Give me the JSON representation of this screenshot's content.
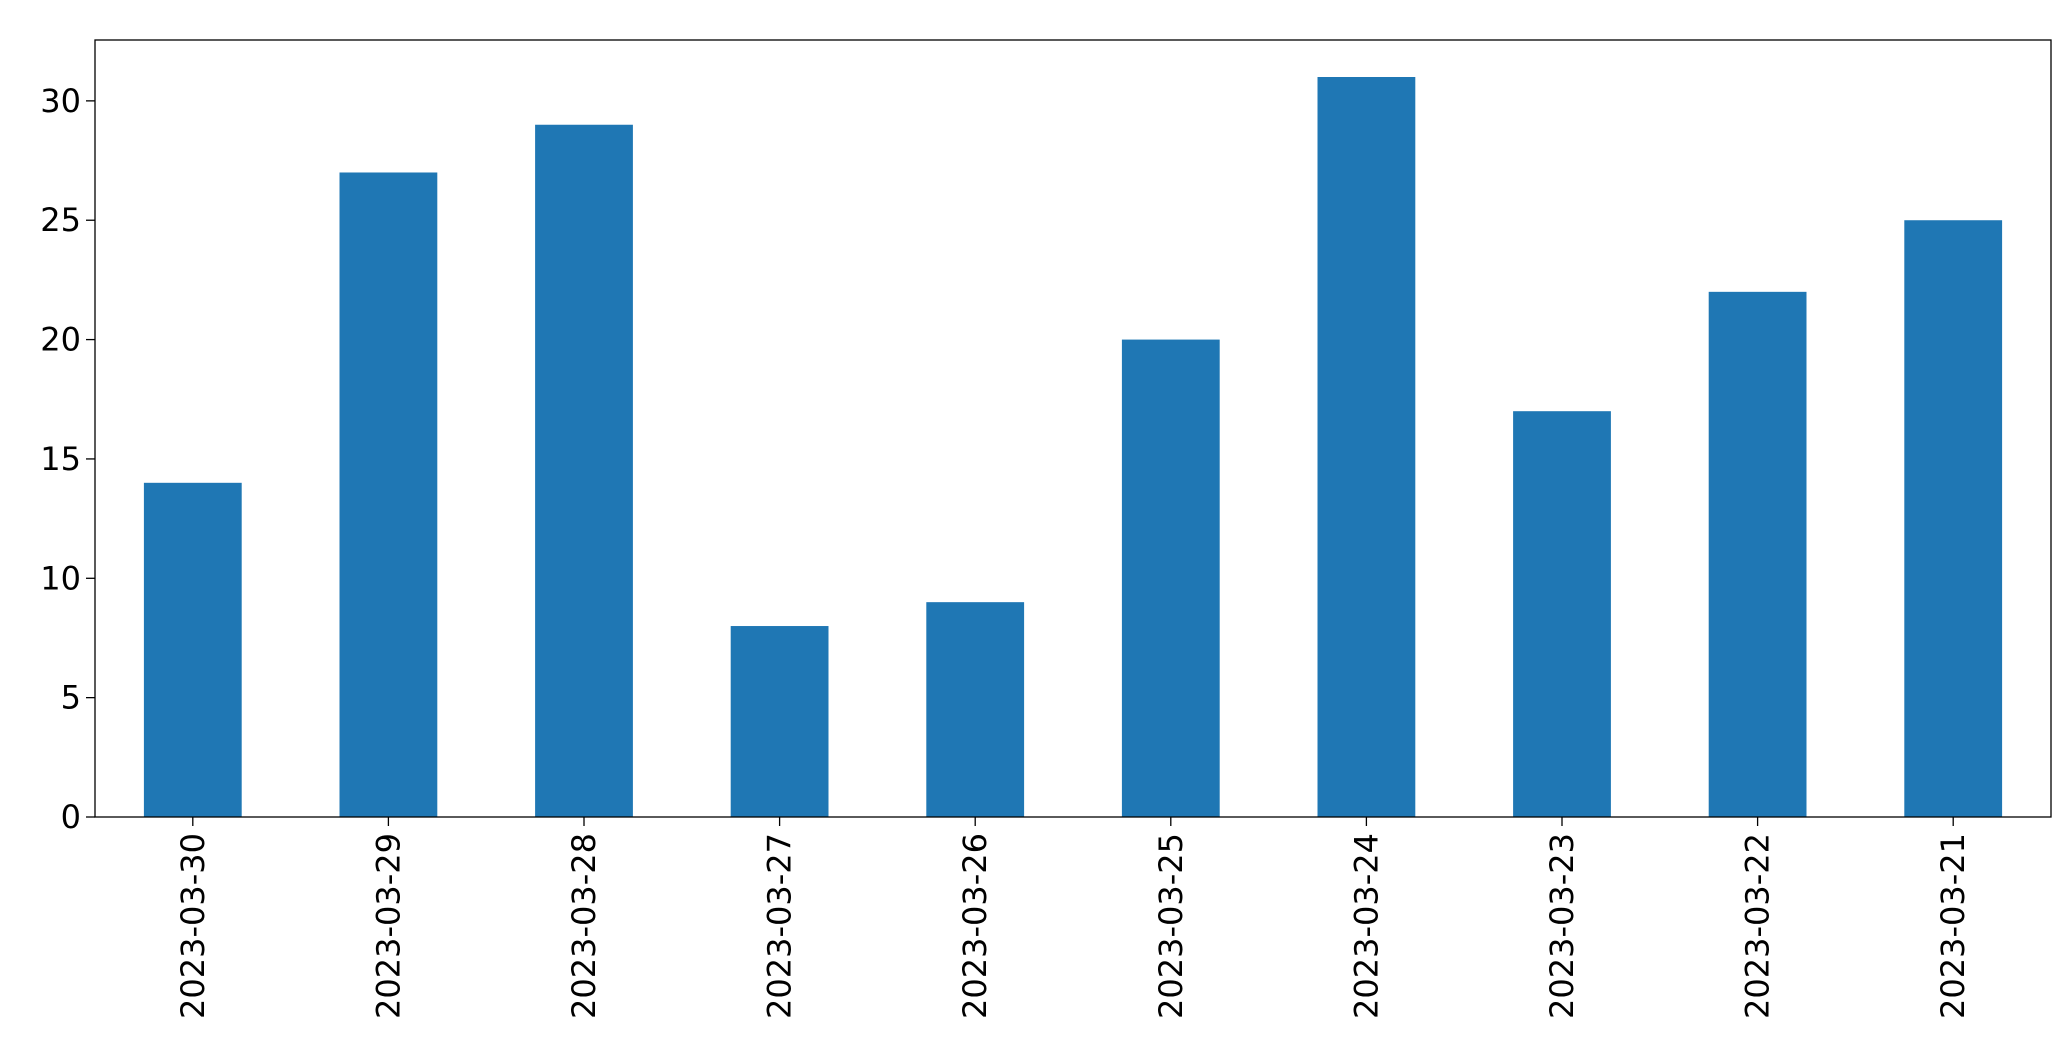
{
  "chart_data": {
    "type": "bar",
    "categories": [
      "2023-03-30",
      "2023-03-29",
      "2023-03-28",
      "2023-03-27",
      "2023-03-26",
      "2023-03-25",
      "2023-03-24",
      "2023-03-23",
      "2023-03-22",
      "2023-03-21"
    ],
    "values": [
      14,
      27,
      29,
      8,
      9,
      20,
      31,
      17,
      22,
      25
    ],
    "color": "#1f77b4",
    "ylim": [
      0,
      32.55
    ],
    "yticks": [
      0,
      5,
      10,
      15,
      20,
      25,
      30
    ],
    "grid": false
  }
}
